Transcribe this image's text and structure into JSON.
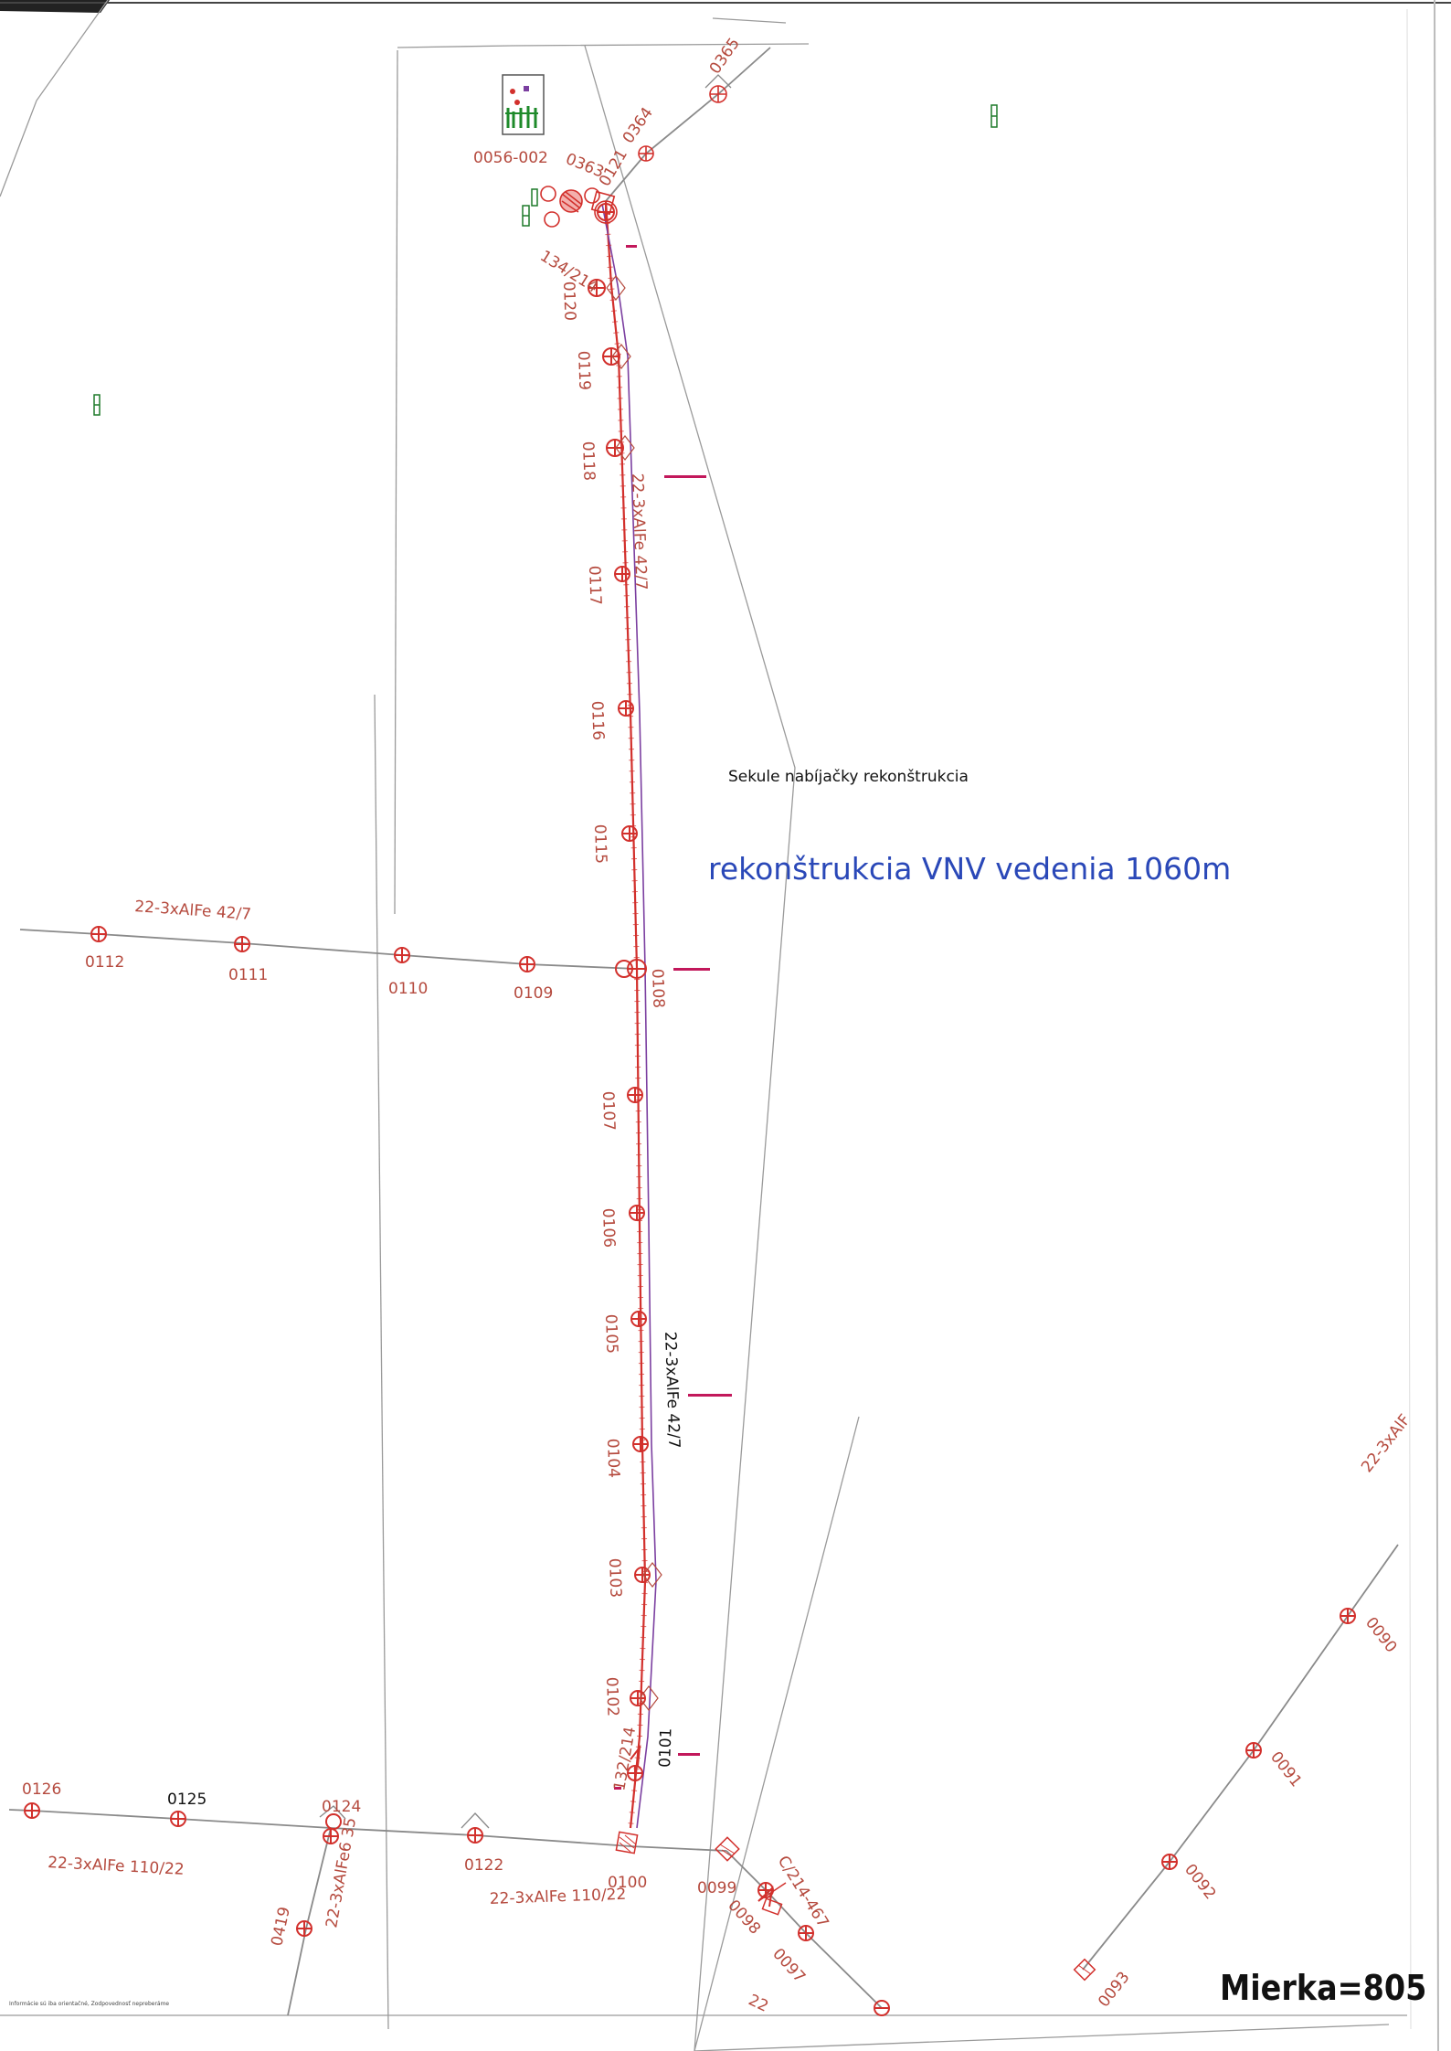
{
  "title_small": "Sekule nabíjačky rekonštrukcia",
  "title_big": "rekonštrukcia VNV vedenia 1060m",
  "scale_label": "Mierka=805",
  "station_label": "0056-002",
  "cables": {
    "main_upper": "22-3xAlFe 42/7",
    "main_lower": "22-3xAlFe 42/7",
    "branch_left": "22-3xAlFe 42/7",
    "bottom_left": "22-3xAlFe 110/22",
    "bottom_mid": "22-3xAlFe 110/22",
    "branch_0124": "22-3xAlFe6 35",
    "right_partial": "22-3xAlF",
    "bottom_partial": "22"
  },
  "parcels": {
    "p_top": "134/214",
    "p_bottom": "132/214",
    "p_right": "C/214-467"
  },
  "main_poles": [
    "0121",
    "0120",
    "0119",
    "0118",
    "0117",
    "0116",
    "0115",
    "0108",
    "0107",
    "0106",
    "0105",
    "0104",
    "0103",
    "0102",
    "0101",
    "0100"
  ],
  "top_poles": [
    "0363",
    "0364",
    "0365"
  ],
  "west_poles": [
    "0109",
    "0110",
    "0111",
    "0112"
  ],
  "south_poles": [
    "0126",
    "0125",
    "0124",
    "0122",
    "0099",
    "0098",
    "0097",
    "0419"
  ],
  "east_poles": [
    "0090",
    "0091",
    "0092",
    "0093"
  ],
  "footer_note": "Informácie sú iba orientačné, Zodpovednosť nepreberáme"
}
